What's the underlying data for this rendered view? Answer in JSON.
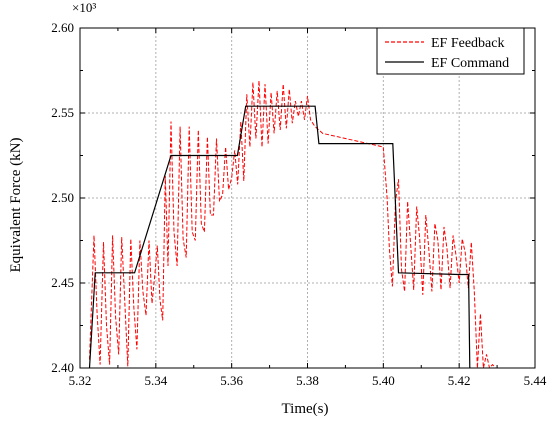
{
  "chart_data": {
    "type": "line",
    "title": "",
    "xlabel": "Time(s)",
    "ylabel": "Equivalent Force (kN)",
    "y_multiplier_label": "×10³",
    "xlim": [
      5.32,
      5.44
    ],
    "ylim": [
      2.4,
      2.6
    ],
    "x_ticks": [
      "5.32",
      "5.34",
      "5.36",
      "5.38",
      "5.40",
      "5.42",
      "5.44"
    ],
    "y_ticks": [
      "2.40",
      "2.45",
      "2.50",
      "2.55",
      "2.60"
    ],
    "x_tick_values": [
      5.32,
      5.34,
      5.36,
      5.38,
      5.4,
      5.42,
      5.44
    ],
    "y_tick_values": [
      2.4,
      2.45,
      2.5,
      2.55,
      2.6
    ],
    "grid": true,
    "legend_position": "top-right",
    "series": [
      {
        "name": "EF Feedback",
        "color": "#ff0000",
        "style": "dashed",
        "x": [
          5.3225,
          5.3237,
          5.3245,
          5.3253,
          5.3262,
          5.327,
          5.3278,
          5.3286,
          5.3294,
          5.3302,
          5.331,
          5.3318,
          5.3326,
          5.3334,
          5.3342,
          5.335,
          5.3358,
          5.3366,
          5.3374,
          5.3382,
          5.339,
          5.3397,
          5.3404,
          5.3411,
          5.3418,
          5.3425,
          5.3432,
          5.344,
          5.3448,
          5.3456,
          5.3464,
          5.3472,
          5.348,
          5.3488,
          5.3496,
          5.3504,
          5.3512,
          5.352,
          5.3528,
          5.3536,
          5.3544,
          5.3552,
          5.356,
          5.3568,
          5.3576,
          5.3584,
          5.3592,
          5.36,
          5.3608,
          5.3616,
          5.3624,
          5.3632,
          5.364,
          5.3648,
          5.3656,
          5.3664,
          5.3672,
          5.368,
          5.3688,
          5.3696,
          5.3704,
          5.3712,
          5.372,
          5.3728,
          5.3736,
          5.3744,
          5.3752,
          5.376,
          5.3768,
          5.3776,
          5.3784,
          5.3792,
          5.38,
          5.3808,
          5.382,
          5.384,
          5.386,
          5.388,
          5.39,
          5.392,
          5.394,
          5.396,
          5.398,
          5.4,
          5.401,
          5.4016,
          5.4024,
          5.4032,
          5.404,
          5.4048,
          5.4056,
          5.4064,
          5.4072,
          5.408,
          5.4088,
          5.4096,
          5.4104,
          5.4112,
          5.412,
          5.4128,
          5.4136,
          5.4144,
          5.4152,
          5.416,
          5.4168,
          5.4176,
          5.4184,
          5.4192,
          5.42,
          5.4208,
          5.4216,
          5.4224,
          5.4232,
          5.424,
          5.4248,
          5.4256,
          5.4264,
          5.4272,
          5.428,
          5.4288,
          5.4296
        ],
        "y": [
          2.405,
          2.478,
          2.432,
          2.402,
          2.474,
          2.425,
          2.402,
          2.478,
          2.43,
          2.408,
          2.477,
          2.44,
          2.401,
          2.476,
          2.436,
          2.411,
          2.475,
          2.445,
          2.431,
          2.475,
          2.438,
          2.454,
          2.472,
          2.44,
          2.428,
          2.513,
          2.46,
          2.545,
          2.48,
          2.46,
          2.542,
          2.476,
          2.465,
          2.542,
          2.48,
          2.475,
          2.54,
          2.485,
          2.48,
          2.536,
          2.49,
          2.49,
          2.535,
          2.498,
          2.502,
          2.53,
          2.505,
          2.512,
          2.528,
          2.508,
          2.545,
          2.51,
          2.561,
          2.53,
          2.568,
          2.535,
          2.569,
          2.53,
          2.567,
          2.532,
          2.562,
          2.538,
          2.563,
          2.54,
          2.567,
          2.541,
          2.564,
          2.544,
          2.557,
          2.548,
          2.557,
          2.546,
          2.56,
          2.546,
          2.542,
          2.538,
          2.537,
          2.536,
          2.535,
          2.534,
          2.533,
          2.532,
          2.531,
          2.53,
          2.5,
          2.47,
          2.448,
          2.498,
          2.511,
          2.458,
          2.445,
          2.498,
          2.473,
          2.446,
          2.495,
          2.476,
          2.443,
          2.49,
          2.47,
          2.445,
          2.485,
          2.475,
          2.446,
          2.483,
          2.47,
          2.447,
          2.478,
          2.466,
          2.45,
          2.476,
          2.468,
          2.447,
          2.474,
          2.445,
          2.4,
          2.432,
          2.4,
          2.408,
          2.4,
          2.402,
          2.4
        ]
      },
      {
        "name": "EF Command",
        "color": "#000000",
        "style": "solid",
        "x": [
          5.3225,
          5.324,
          5.334,
          5.3343,
          5.3344,
          5.344,
          5.3465,
          5.347,
          5.3615,
          5.3637,
          5.364,
          5.382,
          5.383,
          5.402,
          5.4025,
          5.404,
          5.42,
          5.4225,
          5.4228
        ],
        "y": [
          2.4,
          2.456,
          2.456,
          2.456,
          2.456,
          2.525,
          2.525,
          2.525,
          2.525,
          2.554,
          2.554,
          2.554,
          2.532,
          2.532,
          2.532,
          2.456,
          2.455,
          2.455,
          2.4
        ]
      }
    ]
  }
}
